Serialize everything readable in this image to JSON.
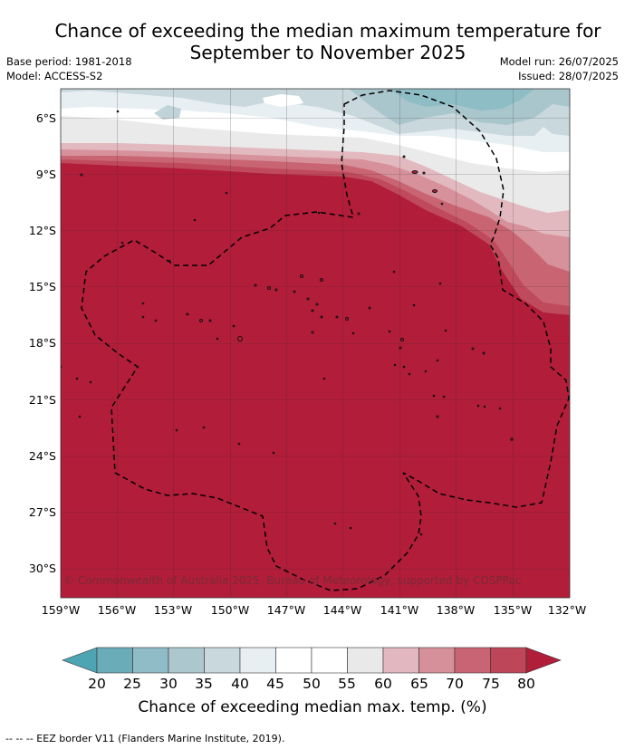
{
  "header": {
    "title_line1": "Chance of exceeding the median maximum temperature for",
    "title_line2": "September to November 2025",
    "base_period": "Base period: 1981-2018",
    "model": "Model: ACCESS-S2",
    "model_run": "Model run: 26/07/2025",
    "issued": "Issued: 28/07/2025"
  },
  "map": {
    "lat_labels": [
      "6°S",
      "9°S",
      "12°S",
      "15°S",
      "18°S",
      "21°S",
      "24°S",
      "27°S",
      "30°S"
    ],
    "lon_labels": [
      "159°W",
      "156°W",
      "153°W",
      "150°W",
      "147°W",
      "144°W",
      "141°W",
      "138°W",
      "135°W",
      "132°W"
    ],
    "copyright": "© Commonwealth of Australia 2025, Bureau of Meteorology, supported by COSPPac"
  },
  "colorbar": {
    "ticks": [
      "20",
      "25",
      "30",
      "35",
      "40",
      "45",
      "50",
      "55",
      "60",
      "65",
      "70",
      "75",
      "80"
    ],
    "colors": [
      "#6aacb8",
      "#8fbcc7",
      "#acc7cd",
      "#c9d8dd",
      "#e8eff3",
      "#ffffff",
      "#ffffff",
      "#e9e9e9",
      "#e2b7bf",
      "#d5909a",
      "#c86473",
      "#bd4659"
    ],
    "low_color": "#4da4b2",
    "high_color": "#b01e3a",
    "title": "Chance of exceeding median max. temp. (%)"
  },
  "footnote": "--  --  -- EEZ border V11 (Flanders Marine Institute, 2019)."
}
